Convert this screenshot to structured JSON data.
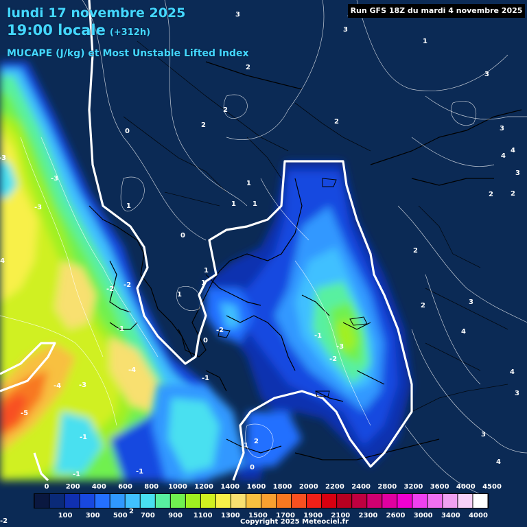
{
  "header": {
    "date_line": "lundi 17 novembre 2025",
    "time_line": "19:00 locale",
    "lead_time": "(+312h)",
    "product": "MUCAPE (J/kg) et Most Unstable Lifted Index",
    "run": "Run GFS 18Z du mardi 4 novembre 2025"
  },
  "legend": {
    "upper_values": [
      "0",
      "200",
      "400",
      "600",
      "800",
      "1000",
      "1200",
      "1400",
      "1600",
      "1800",
      "2000",
      "2200",
      "2400",
      "2800",
      "3200",
      "3600",
      "4000",
      "4500"
    ],
    "lower_values": [
      "100",
      "300",
      "500",
      "700",
      "900",
      "1100",
      "1300",
      "1500",
      "1700",
      "1900",
      "2100",
      "2300",
      "2600",
      "3000",
      "3400",
      "4000"
    ],
    "colors": [
      "#0a1840",
      "#0a2a78",
      "#1030b0",
      "#1848e0",
      "#2470ff",
      "#3098ff",
      "#40c0ff",
      "#48e0f0",
      "#58f0a0",
      "#70f050",
      "#a0f020",
      "#d0f020",
      "#f8f048",
      "#f8e070",
      "#f8c040",
      "#f8a030",
      "#f87820",
      "#f85020",
      "#f02018",
      "#d80010",
      "#b80020",
      "#c00040",
      "#d00070",
      "#e000a0",
      "#f000d0",
      "#f040f0",
      "#f070f0",
      "#f0a0f0",
      "#f8d0f8",
      "#ffffff"
    ],
    "unit": "J/kg"
  },
  "li_labels": [
    "3",
    "3",
    "3",
    "1",
    "3",
    "2",
    "2",
    "2",
    "2",
    "0",
    "1",
    "1",
    "1",
    "1",
    "1",
    "0",
    "1",
    "1",
    "0",
    "2",
    "2",
    "3",
    "4",
    "4",
    "3",
    "2",
    "2",
    "2",
    "3",
    "4",
    "4",
    "3",
    "3",
    "4",
    "-3",
    "-3",
    "-4",
    "-2",
    "-2",
    "-1",
    "-2",
    "-1",
    "-3",
    "-1",
    "-3",
    "-2",
    "-4",
    "-3",
    "-4",
    "-5",
    "-1",
    "-1",
    "-2",
    "-1",
    "1",
    "0",
    "2"
  ],
  "copyright": "Copyright 2025 Meteociel.fr"
}
